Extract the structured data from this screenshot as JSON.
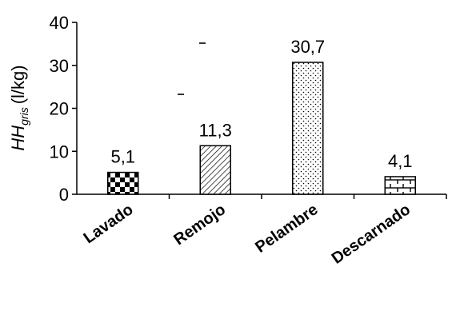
{
  "chart_data": {
    "type": "bar",
    "categories": [
      "Lavado",
      "Remojo",
      "Pelambre",
      "Descarnado"
    ],
    "values": [
      5.1,
      11.3,
      30.7,
      4.1
    ],
    "value_labels": [
      "5,1",
      "11,3",
      "30,7",
      "4,1"
    ],
    "bar_patterns": [
      "checker",
      "diagonal-hatch",
      "dots",
      "brick"
    ],
    "ylabel": {
      "main": "HH",
      "subscript": "gris",
      "unit": "(l/kg)"
    },
    "ylim": [
      0,
      40
    ],
    "yticks": [
      0,
      10,
      20,
      30,
      40
    ],
    "grid": false,
    "legend": "none",
    "bar_fill": "#ffffff",
    "bar_stroke": "#000000"
  }
}
